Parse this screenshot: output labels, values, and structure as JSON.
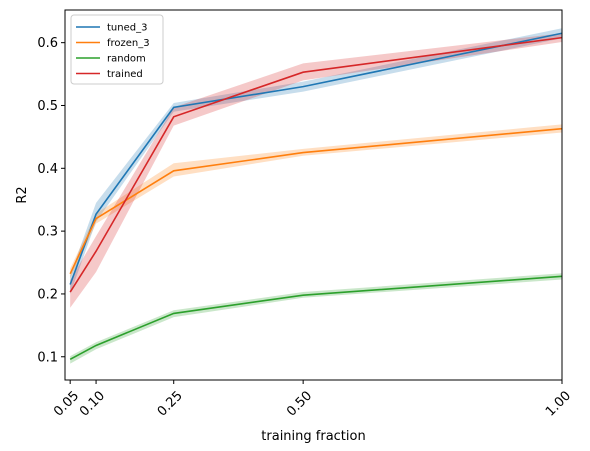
{
  "chart_data": {
    "type": "line",
    "title": "",
    "xlabel": "training fraction",
    "ylabel": "R2",
    "xlim": [
      0.04,
      1.0
    ],
    "ylim": [
      0.063,
      0.652
    ],
    "x": [
      0.05,
      0.1,
      0.25,
      0.5,
      1.0
    ],
    "xticks": [
      "0.05",
      "0.10",
      "0.25",
      "0.50",
      "1.00"
    ],
    "yticks": [
      "0.1",
      "0.2",
      "0.3",
      "0.4",
      "0.5",
      "0.6"
    ],
    "grid": false,
    "legend_position": "top-left",
    "series": [
      {
        "name": "tuned_3",
        "color": "#1f77b4",
        "values": [
          0.215,
          0.327,
          0.497,
          0.53,
          0.615
        ],
        "lower": [
          0.2,
          0.315,
          0.49,
          0.522,
          0.607
        ],
        "upper": [
          0.23,
          0.345,
          0.504,
          0.538,
          0.623
        ]
      },
      {
        "name": "frozen_3",
        "color": "#ff7f0e",
        "values": [
          0.232,
          0.32,
          0.396,
          0.425,
          0.463
        ],
        "lower": [
          0.225,
          0.312,
          0.387,
          0.42,
          0.457
        ],
        "upper": [
          0.24,
          0.328,
          0.408,
          0.431,
          0.47
        ]
      },
      {
        "name": "random",
        "color": "#2ca02c",
        "values": [
          0.096,
          0.118,
          0.169,
          0.198,
          0.228
        ],
        "lower": [
          0.089,
          0.112,
          0.163,
          0.194,
          0.223
        ],
        "upper": [
          0.101,
          0.123,
          0.174,
          0.203,
          0.233
        ]
      },
      {
        "name": "trained",
        "color": "#d62728",
        "values": [
          0.203,
          0.268,
          0.482,
          0.553,
          0.608
        ],
        "lower": [
          0.178,
          0.235,
          0.468,
          0.54,
          0.601
        ],
        "upper": [
          0.222,
          0.292,
          0.497,
          0.567,
          0.615
        ]
      }
    ]
  }
}
